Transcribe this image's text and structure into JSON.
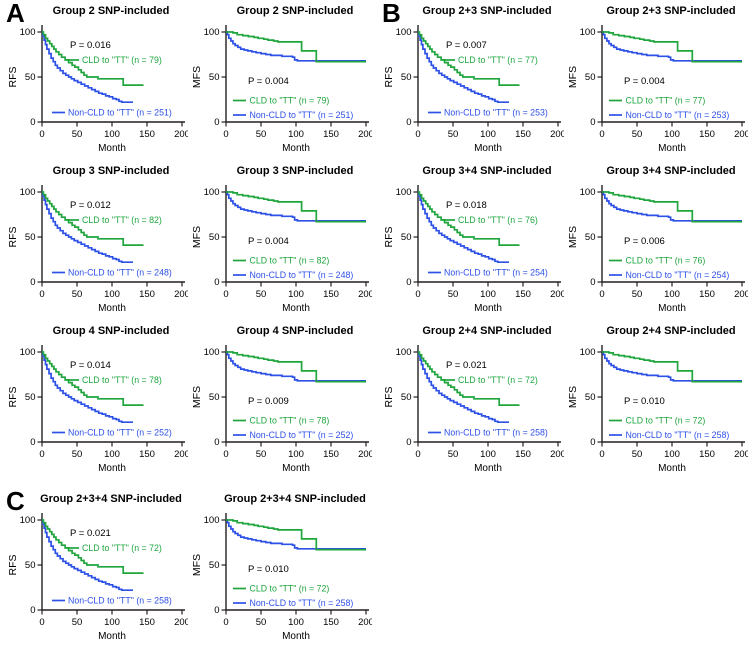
{
  "figure": {
    "panels": [
      {
        "label": "A",
        "plot_indices": [
          0,
          1,
          2,
          3,
          4,
          5
        ]
      },
      {
        "label": "B",
        "plot_indices": [
          6,
          7,
          8,
          9,
          10,
          11
        ]
      },
      {
        "label": "C",
        "plot_indices": [
          12,
          13
        ]
      }
    ]
  },
  "axes": {
    "x_label": "Month",
    "x_ticks": [
      0,
      50,
      100,
      150,
      200
    ],
    "y_ticks": [
      0,
      50,
      100
    ],
    "xlim": [
      0,
      200
    ],
    "ylim": [
      0,
      100
    ]
  },
  "colors": {
    "cld": "#1ea53c",
    "non_cld": "#2d50e6",
    "axis": "#231f20",
    "text": "#000000"
  },
  "curve_points": {
    "rfs_cld": [
      [
        0,
        100
      ],
      [
        2,
        97
      ],
      [
        5,
        93
      ],
      [
        8,
        90
      ],
      [
        11,
        87
      ],
      [
        14,
        84
      ],
      [
        17,
        81
      ],
      [
        20,
        78
      ],
      [
        24,
        75
      ],
      [
        28,
        72
      ],
      [
        33,
        69
      ],
      [
        38,
        66
      ],
      [
        43,
        63
      ],
      [
        47,
        61
      ],
      [
        52,
        58
      ],
      [
        56,
        55
      ],
      [
        60,
        52
      ],
      [
        64,
        50
      ],
      [
        72,
        50
      ],
      [
        80,
        48
      ],
      [
        112,
        48
      ],
      [
        116,
        41
      ],
      [
        145,
        41
      ]
    ],
    "rfs_noncld": [
      [
        0,
        100
      ],
      [
        1,
        96
      ],
      [
        3,
        91
      ],
      [
        5,
        86
      ],
      [
        7,
        81
      ],
      [
        10,
        76
      ],
      [
        13,
        71
      ],
      [
        16,
        67
      ],
      [
        19,
        63
      ],
      [
        22,
        60
      ],
      [
        26,
        57
      ],
      [
        30,
        54
      ],
      [
        34,
        52
      ],
      [
        38,
        50
      ],
      [
        42,
        48
      ],
      [
        46,
        46
      ],
      [
        51,
        44
      ],
      [
        56,
        42
      ],
      [
        61,
        40
      ],
      [
        66,
        38
      ],
      [
        71,
        36
      ],
      [
        76,
        34
      ],
      [
        81,
        32
      ],
      [
        86,
        31
      ],
      [
        91,
        29
      ],
      [
        96,
        28
      ],
      [
        101,
        26
      ],
      [
        106,
        25
      ],
      [
        110,
        23
      ],
      [
        114,
        22
      ],
      [
        130,
        22
      ]
    ],
    "mfs_cld": [
      [
        0,
        100
      ],
      [
        10,
        99
      ],
      [
        16,
        97
      ],
      [
        24,
        96
      ],
      [
        32,
        95
      ],
      [
        40,
        94
      ],
      [
        46,
        93
      ],
      [
        54,
        92
      ],
      [
        60,
        91
      ],
      [
        68,
        90
      ],
      [
        74,
        89
      ],
      [
        105,
        89
      ],
      [
        108,
        79
      ],
      [
        126,
        79
      ],
      [
        129,
        67
      ],
      [
        200,
        67
      ]
    ],
    "mfs_noncld": [
      [
        0,
        100
      ],
      [
        2,
        97
      ],
      [
        4,
        93
      ],
      [
        7,
        90
      ],
      [
        10,
        87
      ],
      [
        13,
        85
      ],
      [
        17,
        83
      ],
      [
        21,
        81
      ],
      [
        26,
        80
      ],
      [
        31,
        79
      ],
      [
        37,
        78
      ],
      [
        43,
        77
      ],
      [
        50,
        76
      ],
      [
        57,
        75
      ],
      [
        64,
        74
      ],
      [
        72,
        74
      ],
      [
        80,
        73
      ],
      [
        90,
        73
      ],
      [
        95,
        72
      ],
      [
        98,
        69
      ],
      [
        102,
        68
      ],
      [
        200,
        68
      ]
    ]
  },
  "chart_data": [
    {
      "panel": "A",
      "type": "line",
      "subtype": "kaplan-meier",
      "title": "Group 2 SNP-included",
      "ylabel": "RFS",
      "xlabel": "Month",
      "p_value": "P = 0.016",
      "xlim": [
        0,
        200
      ],
      "ylim": [
        0,
        100
      ],
      "series": [
        {
          "name": "CLD to \"TT\" (n = 79)",
          "n": 79,
          "color_key": "cld",
          "points_ref": "rfs_cld"
        },
        {
          "name": "Non-CLD to \"TT\" (n = 251)",
          "n": 251,
          "color_key": "non_cld",
          "points_ref": "rfs_noncld"
        }
      ]
    },
    {
      "panel": "A",
      "type": "line",
      "subtype": "kaplan-meier",
      "title": "Group 2 SNP-included",
      "ylabel": "MFS",
      "xlabel": "Month",
      "p_value": "P = 0.004",
      "xlim": [
        0,
        200
      ],
      "ylim": [
        0,
        100
      ],
      "series": [
        {
          "name": "CLD to \"TT\" (n = 79)",
          "n": 79,
          "color_key": "cld",
          "points_ref": "mfs_cld"
        },
        {
          "name": "Non-CLD to \"TT\"  (n = 251)",
          "n": 251,
          "color_key": "non_cld",
          "points_ref": "mfs_noncld"
        }
      ]
    },
    {
      "panel": "A",
      "type": "line",
      "subtype": "kaplan-meier",
      "title": "Group 3 SNP-included",
      "ylabel": "RFS",
      "xlabel": "Month",
      "p_value": "P = 0.012",
      "xlim": [
        0,
        200
      ],
      "ylim": [
        0,
        100
      ],
      "series": [
        {
          "name": "CLD to \"TT\" (n = 82)",
          "n": 82,
          "color_key": "cld",
          "points_ref": "rfs_cld"
        },
        {
          "name": "Non-CLD to \"TT\" (n = 248)",
          "n": 248,
          "color_key": "non_cld",
          "points_ref": "rfs_noncld"
        }
      ]
    },
    {
      "panel": "A",
      "type": "line",
      "subtype": "kaplan-meier",
      "title": "Group 3 SNP-included",
      "ylabel": "MFS",
      "xlabel": "Month",
      "p_value": "P = 0.004",
      "xlim": [
        0,
        200
      ],
      "ylim": [
        0,
        100
      ],
      "series": [
        {
          "name": "CLD to \"TT\" (n = 82)",
          "n": 82,
          "color_key": "cld",
          "points_ref": "mfs_cld"
        },
        {
          "name": "Non-CLD to \"TT\"  (n = 248)",
          "n": 248,
          "color_key": "non_cld",
          "points_ref": "mfs_noncld"
        }
      ]
    },
    {
      "panel": "A",
      "type": "line",
      "subtype": "kaplan-meier",
      "title": "Group 4 SNP-included",
      "ylabel": "RFS",
      "xlabel": "Month",
      "p_value": "P = 0.014",
      "xlim": [
        0,
        200
      ],
      "ylim": [
        0,
        100
      ],
      "series": [
        {
          "name": "CLD to \"TT\" (n = 78)",
          "n": 78,
          "color_key": "cld",
          "points_ref": "rfs_cld"
        },
        {
          "name": "Non-CLD to \"TT\"  (n = 252)",
          "n": 252,
          "color_key": "non_cld",
          "points_ref": "rfs_noncld"
        }
      ]
    },
    {
      "panel": "A",
      "type": "line",
      "subtype": "kaplan-meier",
      "title": "Group 4 SNP-included",
      "ylabel": "MFS",
      "xlabel": "Month",
      "p_value": "P = 0.009",
      "xlim": [
        0,
        200
      ],
      "ylim": [
        0,
        100
      ],
      "series": [
        {
          "name": "CLD to \"TT\" (n = 78)",
          "n": 78,
          "color_key": "cld",
          "points_ref": "mfs_cld"
        },
        {
          "name": "Non-CLD to \"TT\"  (n = 252)",
          "n": 252,
          "color_key": "non_cld",
          "points_ref": "mfs_noncld"
        }
      ]
    },
    {
      "panel": "B",
      "type": "line",
      "subtype": "kaplan-meier",
      "title": "Group 2+3 SNP-included",
      "ylabel": "RFS",
      "xlabel": "Month",
      "p_value": "P = 0.007",
      "xlim": [
        0,
        200
      ],
      "ylim": [
        0,
        100
      ],
      "series": [
        {
          "name": "CLD to \"TT\" (n = 77)",
          "n": 77,
          "color_key": "cld",
          "points_ref": "rfs_cld"
        },
        {
          "name": "Non-CLD to \"TT\"  (n = 253)",
          "n": 253,
          "color_key": "non_cld",
          "points_ref": "rfs_noncld"
        }
      ]
    },
    {
      "panel": "B",
      "type": "line",
      "subtype": "kaplan-meier",
      "title": "Group 2+3 SNP-included",
      "ylabel": "MFS",
      "xlabel": "Month",
      "p_value": "P = 0.004",
      "xlim": [
        0,
        200
      ],
      "ylim": [
        0,
        100
      ],
      "series": [
        {
          "name": "CLD to \"TT\" (n = 77)",
          "n": 77,
          "color_key": "cld",
          "points_ref": "mfs_cld"
        },
        {
          "name": "Non-CLD to \"TT\"  (n = 253)",
          "n": 253,
          "color_key": "non_cld",
          "points_ref": "mfs_noncld"
        }
      ]
    },
    {
      "panel": "B",
      "type": "line",
      "subtype": "kaplan-meier",
      "title": "Group 3+4 SNP-included",
      "ylabel": "RFS",
      "xlabel": "Month",
      "p_value": "P = 0.018",
      "xlim": [
        0,
        200
      ],
      "ylim": [
        0,
        100
      ],
      "series": [
        {
          "name": "CLD to \"TT\" (n = 76)",
          "n": 76,
          "color_key": "cld",
          "points_ref": "rfs_cld"
        },
        {
          "name": "Non-CLD to \"TT\"  (n = 254)",
          "n": 254,
          "color_key": "non_cld",
          "points_ref": "rfs_noncld"
        }
      ]
    },
    {
      "panel": "B",
      "type": "line",
      "subtype": "kaplan-meier",
      "title": "Group 3+4 SNP-included",
      "ylabel": "MFS",
      "xlabel": "Month",
      "p_value": "P = 0.006",
      "xlim": [
        0,
        200
      ],
      "ylim": [
        0,
        100
      ],
      "series": [
        {
          "name": "CLD to \"TT\" (n = 76)",
          "n": 76,
          "color_key": "cld",
          "points_ref": "mfs_cld"
        },
        {
          "name": "Non-CLD to \"TT\"  (n = 254)",
          "n": 254,
          "color_key": "non_cld",
          "points_ref": "mfs_noncld"
        }
      ]
    },
    {
      "panel": "B",
      "type": "line",
      "subtype": "kaplan-meier",
      "title": "Group 2+4 SNP-included",
      "ylabel": "RFS",
      "xlabel": "Month",
      "p_value": "P = 0.021",
      "xlim": [
        0,
        200
      ],
      "ylim": [
        0,
        100
      ],
      "series": [
        {
          "name": "CLD to \"TT\" (n = 72)",
          "n": 72,
          "color_key": "cld",
          "points_ref": "rfs_cld"
        },
        {
          "name": "Non-CLD to \"TT\"  (n = 258)",
          "n": 258,
          "color_key": "non_cld",
          "points_ref": "rfs_noncld"
        }
      ]
    },
    {
      "panel": "B",
      "type": "line",
      "subtype": "kaplan-meier",
      "title": "Group 2+4 SNP-included",
      "ylabel": "MFS",
      "xlabel": "Month",
      "p_value": "P = 0.010",
      "xlim": [
        0,
        200
      ],
      "ylim": [
        0,
        100
      ],
      "series": [
        {
          "name": "CLD to \"TT\" (n = 72)",
          "n": 72,
          "color_key": "cld",
          "points_ref": "mfs_cld"
        },
        {
          "name": "Non-CLD to \"TT\"  (n = 258)",
          "n": 258,
          "color_key": "non_cld",
          "points_ref": "mfs_noncld"
        }
      ]
    },
    {
      "panel": "C",
      "type": "line",
      "subtype": "kaplan-meier",
      "title": "Group 2+3+4 SNP-included",
      "ylabel": "RFS",
      "xlabel": "Month",
      "p_value": "P = 0.021",
      "xlim": [
        0,
        200
      ],
      "ylim": [
        0,
        100
      ],
      "series": [
        {
          "name": "CLD to \"TT\" (n = 72)",
          "n": 72,
          "color_key": "cld",
          "points_ref": "rfs_cld"
        },
        {
          "name": "Non-CLD to \"TT\"  (n = 258)",
          "n": 258,
          "color_key": "non_cld",
          "points_ref": "rfs_noncld"
        }
      ]
    },
    {
      "panel": "C",
      "type": "line",
      "subtype": "kaplan-meier",
      "title": "Group 2+3+4 SNP-included",
      "ylabel": "MFS",
      "xlabel": "Month",
      "p_value": "P = 0.010",
      "xlim": [
        0,
        200
      ],
      "ylim": [
        0,
        100
      ],
      "series": [
        {
          "name": "CLD to \"TT\" (n = 72)",
          "n": 72,
          "color_key": "cld",
          "points_ref": "mfs_cld"
        },
        {
          "name": "Non-CLD to \"TT\"  (n = 258)",
          "n": 258,
          "color_key": "non_cld",
          "points_ref": "mfs_noncld"
        }
      ]
    }
  ]
}
